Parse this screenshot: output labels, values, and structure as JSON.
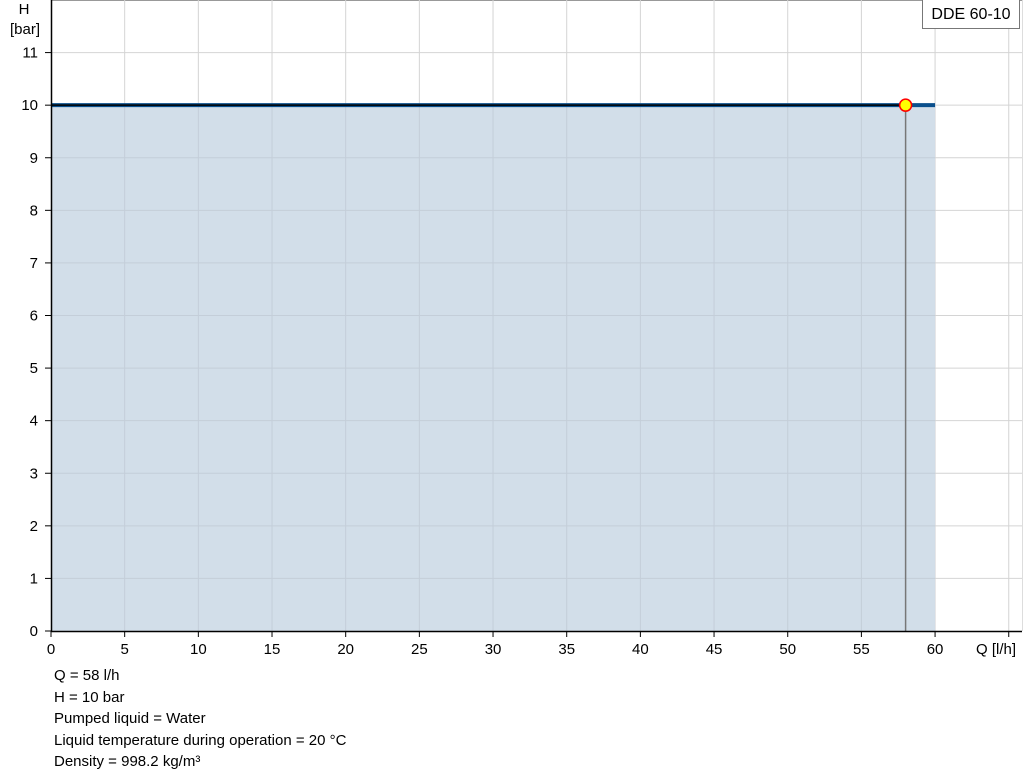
{
  "chart_data": {
    "type": "area",
    "title": "",
    "xlabel": "Q [l/h]",
    "ylabel_line1": "H",
    "ylabel_line2": "[bar]",
    "xlim": [
      0,
      65.9
    ],
    "ylim": [
      0,
      12
    ],
    "x_ticks": [
      0,
      5,
      10,
      15,
      20,
      25,
      30,
      35,
      40,
      45,
      50,
      55,
      60,
      65
    ],
    "x_tick_labels": [
      "0",
      "5",
      "10",
      "15",
      "20",
      "25",
      "30",
      "35",
      "40",
      "45",
      "50",
      "55",
      "60",
      ""
    ],
    "y_ticks": [
      0,
      1,
      2,
      3,
      4,
      5,
      6,
      7,
      8,
      9,
      10,
      11
    ],
    "y_tick_labels": [
      "0",
      "1",
      "2",
      "3",
      "4",
      "5",
      "6",
      "7",
      "8",
      "9",
      "10",
      "11"
    ],
    "grid": true,
    "legend_placement": "top-right",
    "series": [
      {
        "name": "DDE 60-10",
        "x": [
          0,
          60
        ],
        "y": [
          10,
          10
        ],
        "color": "#0a4f8c",
        "fill": "#d0dce8"
      }
    ],
    "duty_line": {
      "x": [
        0,
        58
      ],
      "y": [
        10,
        10
      ],
      "color": "#000000"
    },
    "duty_point": {
      "x": 58,
      "y": 10,
      "fill": "#ffff00",
      "stroke": "#ff0000"
    }
  },
  "info": [
    "Q = 58 l/h",
    "H = 10 bar",
    "Pumped liquid = Water",
    "Liquid temperature during operation = 20 °C",
    "Density = 998.2 kg/m³"
  ]
}
